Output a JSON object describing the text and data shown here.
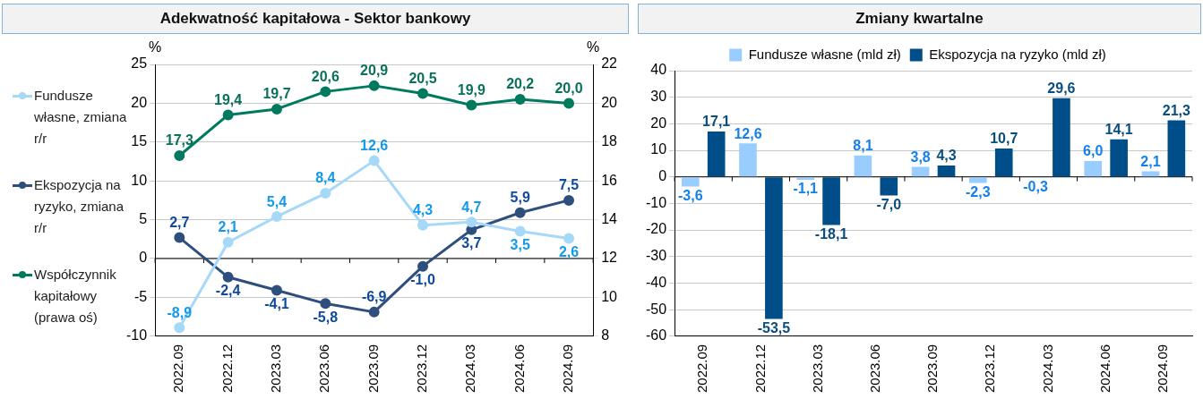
{
  "chart_data": [
    {
      "type": "line",
      "title": "Adekwatność kapitałowa - Sektor bankowy",
      "ylabel": "%",
      "y2label": "%",
      "categories": [
        "2022.09",
        "2022.12",
        "2023.03",
        "2023.06",
        "2023.09",
        "2023.12",
        "2024.03",
        "2024.06",
        "2024.09"
      ],
      "ylim": [
        -10,
        25
      ],
      "yticks": [
        -10,
        -5,
        0,
        5,
        10,
        15,
        20,
        25
      ],
      "y2lim": [
        8,
        22
      ],
      "y2ticks": [
        8,
        10,
        12,
        14,
        16,
        18,
        20,
        22
      ],
      "grid": "y",
      "legend": "left",
      "marker": "circle",
      "series": [
        {
          "name": "Fundusze własne, zmiana r/r",
          "color": "#a6d8f7",
          "values": [
            -8.9,
            2.1,
            5.4,
            8.4,
            12.6,
            4.3,
            4.7,
            3.5,
            2.6
          ],
          "value_labels": [
            "-8,9",
            "2,1",
            "5,4",
            "8,4",
            "12,6",
            "4,3",
            "4,7",
            "3,5",
            "2,6"
          ]
        },
        {
          "name": "Ekspozycja na ryzyko, zmiana r/r",
          "color": "#2e4f7e",
          "values": [
            2.7,
            -2.4,
            -4.1,
            -5.8,
            -6.9,
            -1.0,
            3.7,
            5.9,
            7.5
          ],
          "value_labels": [
            "2,7",
            "-2,4",
            "-4,1",
            "-5,8",
            "-6,9",
            "-1,0",
            "3,7",
            "5,9",
            "7,5"
          ]
        },
        {
          "name": "Współczynnik kapitałowy (prawa oś)",
          "color": "#007a5e",
          "axis": "y2",
          "values": [
            17.3,
            19.4,
            19.7,
            20.6,
            20.9,
            20.5,
            19.9,
            20.2,
            20.0
          ],
          "value_labels": [
            "17,3",
            "19,4",
            "19,7",
            "20,6",
            "20,9",
            "20,5",
            "19,9",
            "20,2",
            "20,0"
          ]
        }
      ]
    },
    {
      "type": "bar",
      "title": "Zmiany kwartalne",
      "categories": [
        "2022.09",
        "2022.12",
        "2023.03",
        "2023.06",
        "2023.09",
        "2023.12",
        "2024.03",
        "2024.06",
        "2024.09"
      ],
      "ylim": [
        -60,
        40
      ],
      "yticks": [
        -60,
        -50,
        -40,
        -30,
        -20,
        -10,
        0,
        10,
        20,
        30,
        40
      ],
      "grid": "y",
      "legend": "top",
      "series": [
        {
          "name": "Fundusze własne (mld zł)",
          "color": "#99ccff",
          "values": [
            -3.6,
            12.6,
            -1.1,
            8.1,
            3.8,
            -2.3,
            -0.3,
            6.0,
            2.1
          ],
          "value_labels": [
            "-3,6",
            "12,6",
            "-1,1",
            "8,1",
            "3,8",
            "-2,3",
            "-0,3",
            "6,0",
            "2,1"
          ]
        },
        {
          "name": "Ekspozycja na ryzyko (mld zł)",
          "color": "#004e89",
          "values": [
            17.1,
            -53.5,
            -18.1,
            -7.0,
            4.3,
            10.7,
            29.6,
            14.1,
            21.3
          ],
          "value_labels": [
            "17,1",
            "-53,5",
            "-18,1",
            "-7,0",
            "4,3",
            "10,7",
            "29,6",
            "14,1",
            "21,3"
          ]
        }
      ]
    }
  ]
}
